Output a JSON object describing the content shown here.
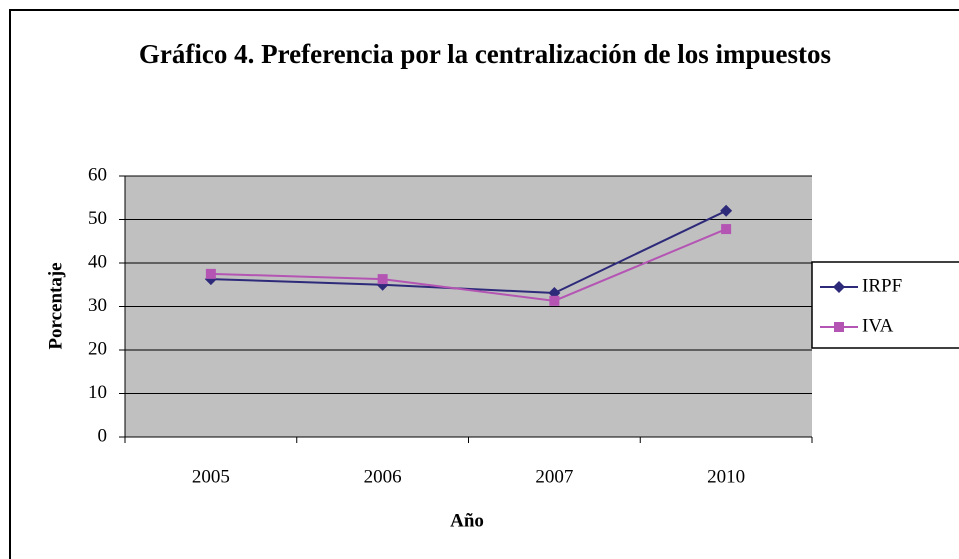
{
  "chart_data": {
    "type": "line",
    "title": "Gráfico 4. Preferencia por la centralización de los impuestos",
    "x_label": "Año",
    "y_label": "Porcentaje",
    "categories": [
      "2005",
      "2006",
      "2007",
      "2010"
    ],
    "series": [
      {
        "name": "IRPF",
        "color": "#2e2a7a",
        "marker": "diamond",
        "values": [
          36.3,
          35.0,
          33.1,
          52.0
        ]
      },
      {
        "name": "IVA",
        "color": "#b455b4",
        "marker": "square",
        "values": [
          37.5,
          36.3,
          31.3,
          47.8
        ]
      }
    ],
    "ylim": [
      0,
      60
    ],
    "yticks": [
      0,
      10,
      20,
      30,
      40,
      50,
      60
    ],
    "grid": true
  }
}
